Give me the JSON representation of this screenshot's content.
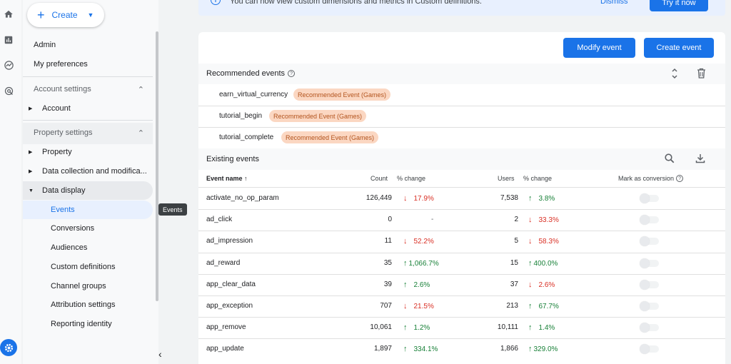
{
  "create_button": {
    "label": "Create"
  },
  "sidebar": {
    "admin": "Admin",
    "my_preferences": "My preferences",
    "account_settings": "Account settings",
    "account": "Account",
    "property_settings": "Property settings",
    "property": "Property",
    "data_collection": "Data collection and modifica...",
    "data_display": "Data display",
    "items": [
      "Events",
      "Conversions",
      "Audiences",
      "Custom definitions",
      "Channel groups",
      "Attribution settings",
      "Reporting identity"
    ]
  },
  "tooltip": "Events",
  "banner": {
    "text": "You can now view custom dimensions and metrics in Custom definitions.",
    "dismiss": "Dismiss",
    "try": "Try it now"
  },
  "toolbar": {
    "modify_event": "Modify event",
    "create_event": "Create event"
  },
  "recommended": {
    "title": "Recommended events",
    "items": [
      {
        "name": "earn_virtual_currency",
        "chip": "Recommended Event (Games)"
      },
      {
        "name": "tutorial_begin",
        "chip": "Recommended Event (Games)"
      },
      {
        "name": "tutorial_complete",
        "chip": "Recommended Event (Games)"
      }
    ]
  },
  "existing": {
    "title": "Existing events",
    "columns": {
      "event_name": "Event name",
      "count": "Count",
      "count_change": "% change",
      "users": "Users",
      "users_change": "% change",
      "mark": "Mark as conversion"
    },
    "rows": [
      {
        "name": "activate_no_op_param",
        "count": "126,449",
        "count_change": "17.9%",
        "count_dir": "down",
        "users": "7,538",
        "users_change": "3.8%",
        "users_dir": "up"
      },
      {
        "name": "ad_click",
        "count": "0",
        "count_change": "-",
        "count_dir": "none",
        "users": "2",
        "users_change": "33.3%",
        "users_dir": "down"
      },
      {
        "name": "ad_impression",
        "count": "11",
        "count_change": "52.2%",
        "count_dir": "down",
        "users": "5",
        "users_change": "58.3%",
        "users_dir": "down"
      },
      {
        "name": "ad_reward",
        "count": "35",
        "count_change": "1,066.7%",
        "count_dir": "up",
        "users": "15",
        "users_change": "400.0%",
        "users_dir": "up"
      },
      {
        "name": "app_clear_data",
        "count": "39",
        "count_change": "2.6%",
        "count_dir": "up",
        "users": "37",
        "users_change": "2.6%",
        "users_dir": "down"
      },
      {
        "name": "app_exception",
        "count": "707",
        "count_change": "21.5%",
        "count_dir": "down",
        "users": "213",
        "users_change": "67.7%",
        "users_dir": "up"
      },
      {
        "name": "app_remove",
        "count": "10,061",
        "count_change": "1.2%",
        "count_dir": "up",
        "users": "10,111",
        "users_change": "1.4%",
        "users_dir": "up"
      },
      {
        "name": "app_update",
        "count": "1,897",
        "count_change": "334.1%",
        "count_dir": "up",
        "users": "1,866",
        "users_change": "329.0%",
        "users_dir": "up"
      }
    ]
  },
  "colors": {
    "accent": "#1a73e8",
    "down": "#d93025",
    "up": "#188038",
    "chip_bg": "#fbd7c2",
    "chip_text": "#b3541e"
  }
}
